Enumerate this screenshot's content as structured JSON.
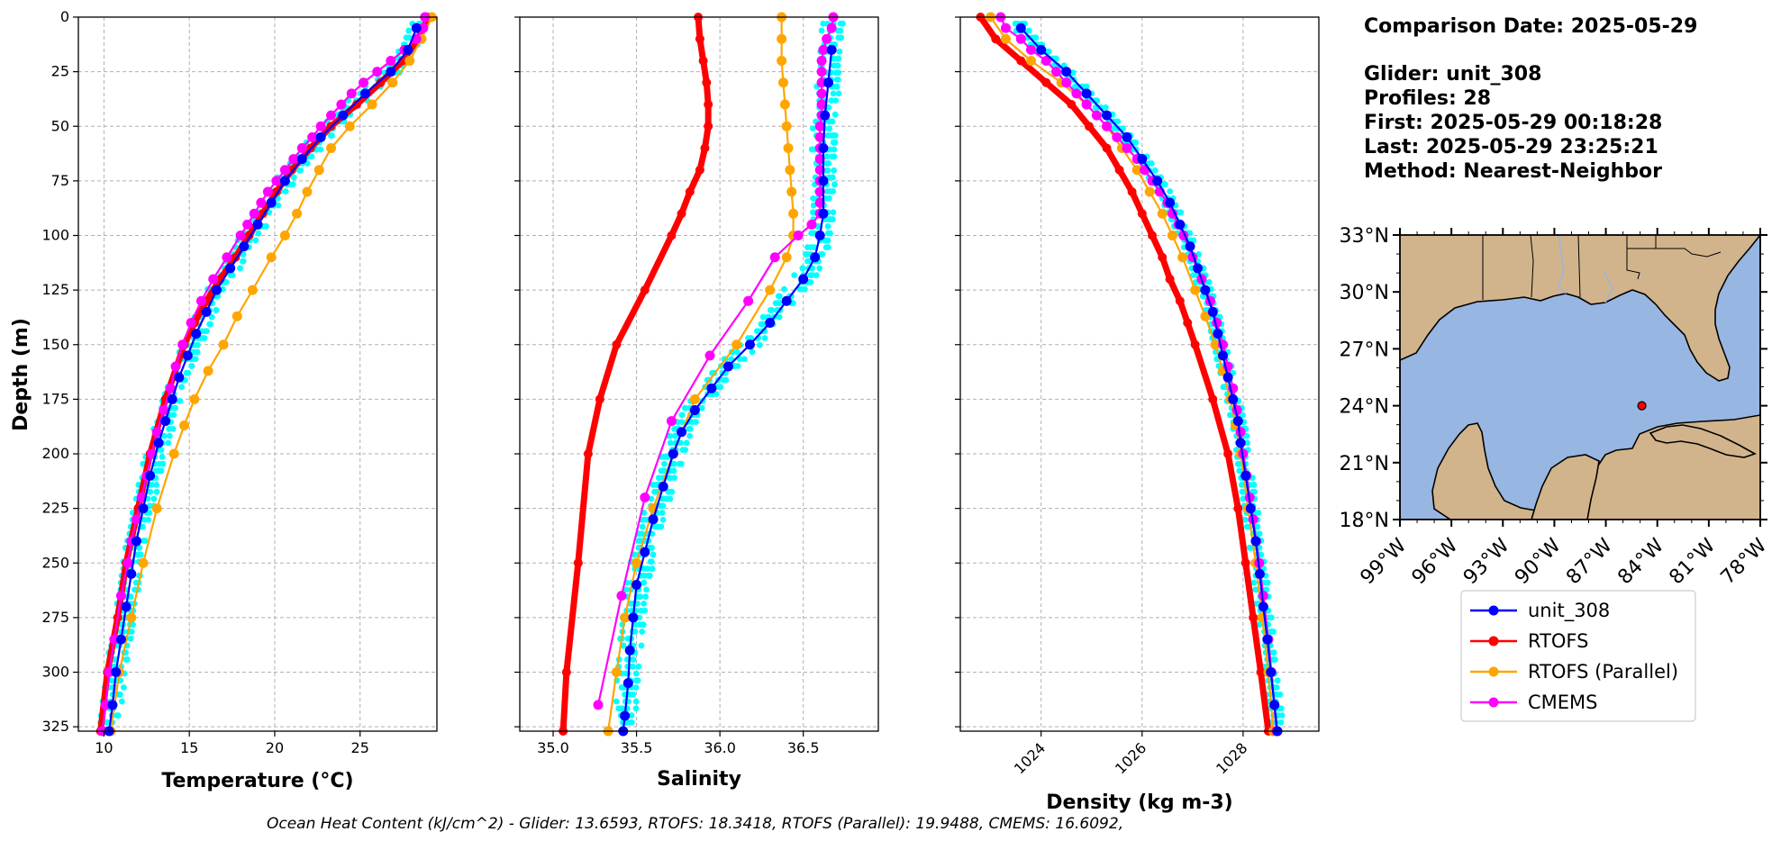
{
  "colors": {
    "glider": "#0000ff",
    "glider_cloud": "#00ffff",
    "rtofs": "#ff0000",
    "rtofs_parallel": "#ffa500",
    "cmems": "#ff00ff",
    "land": "#d2b48c",
    "ocean": "#97b6e1",
    "marker_red": "#ff0000"
  },
  "info": {
    "comparison_date": "Comparison Date: 2025-05-29",
    "glider": "Glider: unit_308",
    "profiles": "Profiles: 28",
    "first": "First: 2025-05-29 00:18:28",
    "last": "Last: 2025-05-29 23:25:21",
    "method": "Method: Nearest-Neighbor"
  },
  "footer": {
    "text": "Ocean Heat Content (kJ/cm^2) - Glider: 13.6593,  RTOFS: 18.3418,  RTOFS (Parallel): 19.9488,  CMEMS: 16.6092,"
  },
  "legend": {
    "items": [
      {
        "label": "unit_308",
        "key": "glider"
      },
      {
        "label": "RTOFS",
        "key": "rtofs"
      },
      {
        "label": "RTOFS (Parallel)",
        "key": "rtofs_parallel"
      },
      {
        "label": "CMEMS",
        "key": "cmems"
      }
    ]
  },
  "map": {
    "lat_ticks": [
      "33°N",
      "30°N",
      "27°N",
      "24°N",
      "21°N",
      "18°N"
    ],
    "lon_ticks": [
      "99°W",
      "96°W",
      "93°W",
      "90°W",
      "87°W",
      "84°W",
      "81°W",
      "78°W"
    ],
    "extent": {
      "lon": [
        -99,
        -78
      ],
      "lat": [
        18,
        33
      ]
    },
    "glider_location": {
      "lon": -84.9,
      "lat": 24.0
    }
  },
  "chart_data": [
    {
      "type": "line",
      "xlabel": "Temperature (°C)",
      "ylabel": "Depth (m)",
      "xlim": [
        8.5,
        29.5
      ],
      "ylim": [
        327,
        0
      ],
      "xticks": [
        10,
        15,
        20,
        25
      ],
      "yticks": [
        0,
        25,
        50,
        75,
        100,
        125,
        150,
        175,
        200,
        225,
        250,
        275,
        300,
        325
      ],
      "grid": true,
      "series": [
        {
          "name": "unit_308",
          "key": "glider",
          "depth": [
            5,
            15,
            25,
            35,
            45,
            55,
            65,
            75,
            85,
            95,
            105,
            115,
            125,
            135,
            145,
            155,
            165,
            175,
            185,
            195,
            210,
            225,
            240,
            255,
            270,
            285,
            300,
            315,
            327
          ],
          "values": [
            28.3,
            27.8,
            26.8,
            25.3,
            24.0,
            22.7,
            21.6,
            20.6,
            19.8,
            19.0,
            18.2,
            17.4,
            16.6,
            16.0,
            15.4,
            14.9,
            14.4,
            14.0,
            13.6,
            13.2,
            12.7,
            12.3,
            11.9,
            11.6,
            11.3,
            11.0,
            10.7,
            10.5,
            10.3
          ]
        },
        {
          "name": "RTOFS",
          "key": "rtofs",
          "depth": [
            0,
            10,
            20,
            30,
            40,
            50,
            60,
            70,
            80,
            90,
            100,
            110,
            120,
            130,
            140,
            150,
            175,
            200,
            225,
            250,
            275,
            300,
            327
          ],
          "values": [
            29.0,
            28.4,
            27.5,
            26.2,
            24.8,
            23.3,
            22.1,
            21.0,
            20.1,
            19.3,
            18.5,
            17.7,
            16.8,
            16.0,
            15.3,
            14.7,
            13.6,
            12.7,
            12.0,
            11.3,
            10.8,
            10.2,
            9.8
          ]
        },
        {
          "name": "RTOFS (Parallel)",
          "key": "rtofs_parallel",
          "depth": [
            0,
            10,
            20,
            30,
            40,
            50,
            60,
            70,
            80,
            90,
            100,
            110,
            125,
            137,
            150,
            162,
            175,
            187,
            200,
            225,
            250,
            275,
            300,
            327
          ],
          "values": [
            29.2,
            28.6,
            27.9,
            26.9,
            25.7,
            24.4,
            23.3,
            22.6,
            21.9,
            21.3,
            20.6,
            19.8,
            18.7,
            17.8,
            17.0,
            16.1,
            15.3,
            14.7,
            14.1,
            13.1,
            12.3,
            11.6,
            10.9,
            10.4
          ]
        },
        {
          "name": "CMEMS",
          "key": "cmems",
          "depth": [
            0,
            5,
            10,
            15,
            20,
            25,
            30,
            35,
            40,
            45,
            50,
            55,
            60,
            65,
            70,
            75,
            80,
            85,
            90,
            95,
            100,
            110,
            120,
            130,
            140,
            150,
            160,
            170,
            180,
            190,
            200,
            210,
            220,
            230,
            240,
            250,
            265,
            285,
            300,
            315,
            327
          ],
          "values": [
            28.8,
            28.7,
            28.3,
            27.6,
            26.8,
            26.0,
            25.2,
            24.5,
            23.9,
            23.3,
            22.7,
            22.2,
            21.6,
            21.1,
            20.6,
            20.1,
            19.6,
            19.2,
            18.8,
            18.4,
            18.0,
            17.2,
            16.4,
            15.7,
            15.1,
            14.6,
            14.2,
            13.9,
            13.5,
            13.1,
            12.8,
            12.5,
            12.2,
            11.9,
            11.6,
            11.4,
            11.0,
            10.6,
            10.3,
            10.1,
            9.9
          ]
        }
      ]
    },
    {
      "type": "line",
      "xlabel": "Salinity",
      "xlim": [
        34.8,
        36.95
      ],
      "ylim": [
        327,
        0
      ],
      "xticks": [
        35.0,
        35.5,
        36.0,
        36.5
      ],
      "xtick_labels": [
        "35.0",
        "35.5",
        "36.0",
        "36.5"
      ],
      "grid": true,
      "series": [
        {
          "name": "unit_308",
          "key": "glider",
          "depth": [
            15,
            30,
            45,
            60,
            75,
            90,
            100,
            110,
            120,
            130,
            140,
            150,
            160,
            170,
            180,
            190,
            200,
            215,
            230,
            245,
            260,
            275,
            290,
            305,
            320,
            327
          ],
          "values": [
            36.67,
            36.65,
            36.63,
            36.62,
            36.62,
            36.62,
            36.6,
            36.57,
            36.5,
            36.4,
            36.3,
            36.18,
            36.05,
            35.95,
            35.85,
            35.77,
            35.72,
            35.66,
            35.6,
            35.55,
            35.5,
            35.48,
            35.46,
            35.45,
            35.43,
            35.42
          ]
        },
        {
          "name": "RTOFS",
          "key": "rtofs",
          "depth": [
            0,
            10,
            20,
            30,
            40,
            50,
            60,
            70,
            80,
            90,
            100,
            125,
            150,
            175,
            200,
            250,
            300,
            327
          ],
          "values": [
            35.87,
            35.88,
            35.9,
            35.92,
            35.93,
            35.93,
            35.91,
            35.88,
            35.82,
            35.77,
            35.71,
            35.55,
            35.38,
            35.28,
            35.21,
            35.15,
            35.08,
            35.06
          ]
        },
        {
          "name": "RTOFS (Parallel)",
          "key": "rtofs_parallel",
          "depth": [
            0,
            10,
            20,
            30,
            40,
            50,
            60,
            70,
            80,
            90,
            100,
            110,
            125,
            150,
            175,
            200,
            225,
            250,
            275,
            300,
            327
          ],
          "values": [
            36.37,
            36.37,
            36.37,
            36.38,
            36.39,
            36.4,
            36.41,
            36.42,
            36.43,
            36.44,
            36.44,
            36.4,
            36.3,
            36.1,
            35.85,
            35.72,
            35.6,
            35.5,
            35.43,
            35.38,
            35.33
          ]
        },
        {
          "name": "CMEMS",
          "key": "cmems",
          "depth": [
            0,
            5,
            10,
            15,
            20,
            25,
            30,
            35,
            40,
            45,
            50,
            55,
            60,
            65,
            70,
            75,
            80,
            85,
            90,
            95,
            100,
            110,
            130,
            155,
            185,
            220,
            265,
            315
          ],
          "values": [
            36.68,
            36.67,
            36.64,
            36.62,
            36.61,
            36.61,
            36.61,
            36.61,
            36.61,
            36.61,
            36.6,
            36.6,
            36.6,
            36.6,
            36.6,
            36.6,
            36.6,
            36.6,
            36.6,
            36.55,
            36.47,
            36.33,
            36.17,
            35.94,
            35.71,
            35.55,
            35.41,
            35.27
          ]
        }
      ]
    },
    {
      "type": "line",
      "xlabel": "Density (kg m-3)",
      "xlim": [
        1022.4,
        1029.5
      ],
      "ylim": [
        327,
        0
      ],
      "xticks": [
        1024,
        1026,
        1028
      ],
      "grid": true,
      "series": [
        {
          "name": "unit_308",
          "key": "glider",
          "depth": [
            5,
            15,
            25,
            35,
            45,
            55,
            65,
            75,
            85,
            95,
            105,
            115,
            125,
            135,
            145,
            155,
            165,
            175,
            185,
            195,
            210,
            225,
            240,
            255,
            270,
            285,
            300,
            315,
            327
          ],
          "values": [
            1023.6,
            1024.0,
            1024.5,
            1024.9,
            1025.3,
            1025.7,
            1026.0,
            1026.3,
            1026.55,
            1026.75,
            1026.95,
            1027.1,
            1027.25,
            1027.4,
            1027.5,
            1027.6,
            1027.7,
            1027.8,
            1027.9,
            1027.95,
            1028.05,
            1028.15,
            1028.25,
            1028.33,
            1028.4,
            1028.48,
            1028.55,
            1028.62,
            1028.68
          ]
        },
        {
          "name": "RTOFS",
          "key": "rtofs",
          "depth": [
            0,
            10,
            20,
            30,
            40,
            50,
            60,
            70,
            80,
            90,
            100,
            110,
            120,
            130,
            140,
            150,
            175,
            200,
            225,
            250,
            275,
            300,
            327
          ],
          "values": [
            1022.8,
            1023.1,
            1023.6,
            1024.1,
            1024.6,
            1024.95,
            1025.3,
            1025.55,
            1025.8,
            1026.0,
            1026.2,
            1026.4,
            1026.55,
            1026.75,
            1026.9,
            1027.05,
            1027.4,
            1027.7,
            1027.9,
            1028.05,
            1028.2,
            1028.35,
            1028.5
          ]
        },
        {
          "name": "RTOFS (Parallel)",
          "key": "rtofs_parallel",
          "depth": [
            0,
            10,
            20,
            30,
            40,
            50,
            60,
            70,
            80,
            90,
            100,
            110,
            125,
            137,
            150,
            162,
            175,
            187,
            200,
            225,
            250,
            275,
            300,
            327
          ],
          "values": [
            1023.0,
            1023.3,
            1023.8,
            1024.4,
            1024.9,
            1025.3,
            1025.6,
            1025.9,
            1026.15,
            1026.4,
            1026.6,
            1026.8,
            1027.05,
            1027.25,
            1027.45,
            1027.6,
            1027.75,
            1027.85,
            1027.95,
            1028.1,
            1028.25,
            1028.38,
            1028.5,
            1028.6
          ]
        },
        {
          "name": "CMEMS",
          "key": "cmems",
          "depth": [
            0,
            5,
            10,
            15,
            20,
            25,
            30,
            35,
            40,
            45,
            50,
            55,
            60,
            65,
            70,
            75,
            80,
            85,
            90,
            95,
            100,
            110,
            120,
            130,
            140,
            150,
            160,
            170,
            180,
            190,
            200,
            210,
            220,
            230,
            240,
            250,
            265,
            285,
            300,
            315,
            327
          ],
          "values": [
            1023.2,
            1023.3,
            1023.6,
            1023.8,
            1024.1,
            1024.3,
            1024.5,
            1024.7,
            1024.9,
            1025.1,
            1025.3,
            1025.5,
            1025.7,
            1025.9,
            1026.05,
            1026.2,
            1026.35,
            1026.5,
            1026.6,
            1026.72,
            1026.82,
            1027.0,
            1027.18,
            1027.35,
            1027.48,
            1027.6,
            1027.7,
            1027.8,
            1027.88,
            1027.95,
            1028.0,
            1028.07,
            1028.13,
            1028.2,
            1028.26,
            1028.32,
            1028.4,
            1028.5,
            1028.56,
            1028.62,
            1028.66
          ]
        }
      ]
    }
  ]
}
